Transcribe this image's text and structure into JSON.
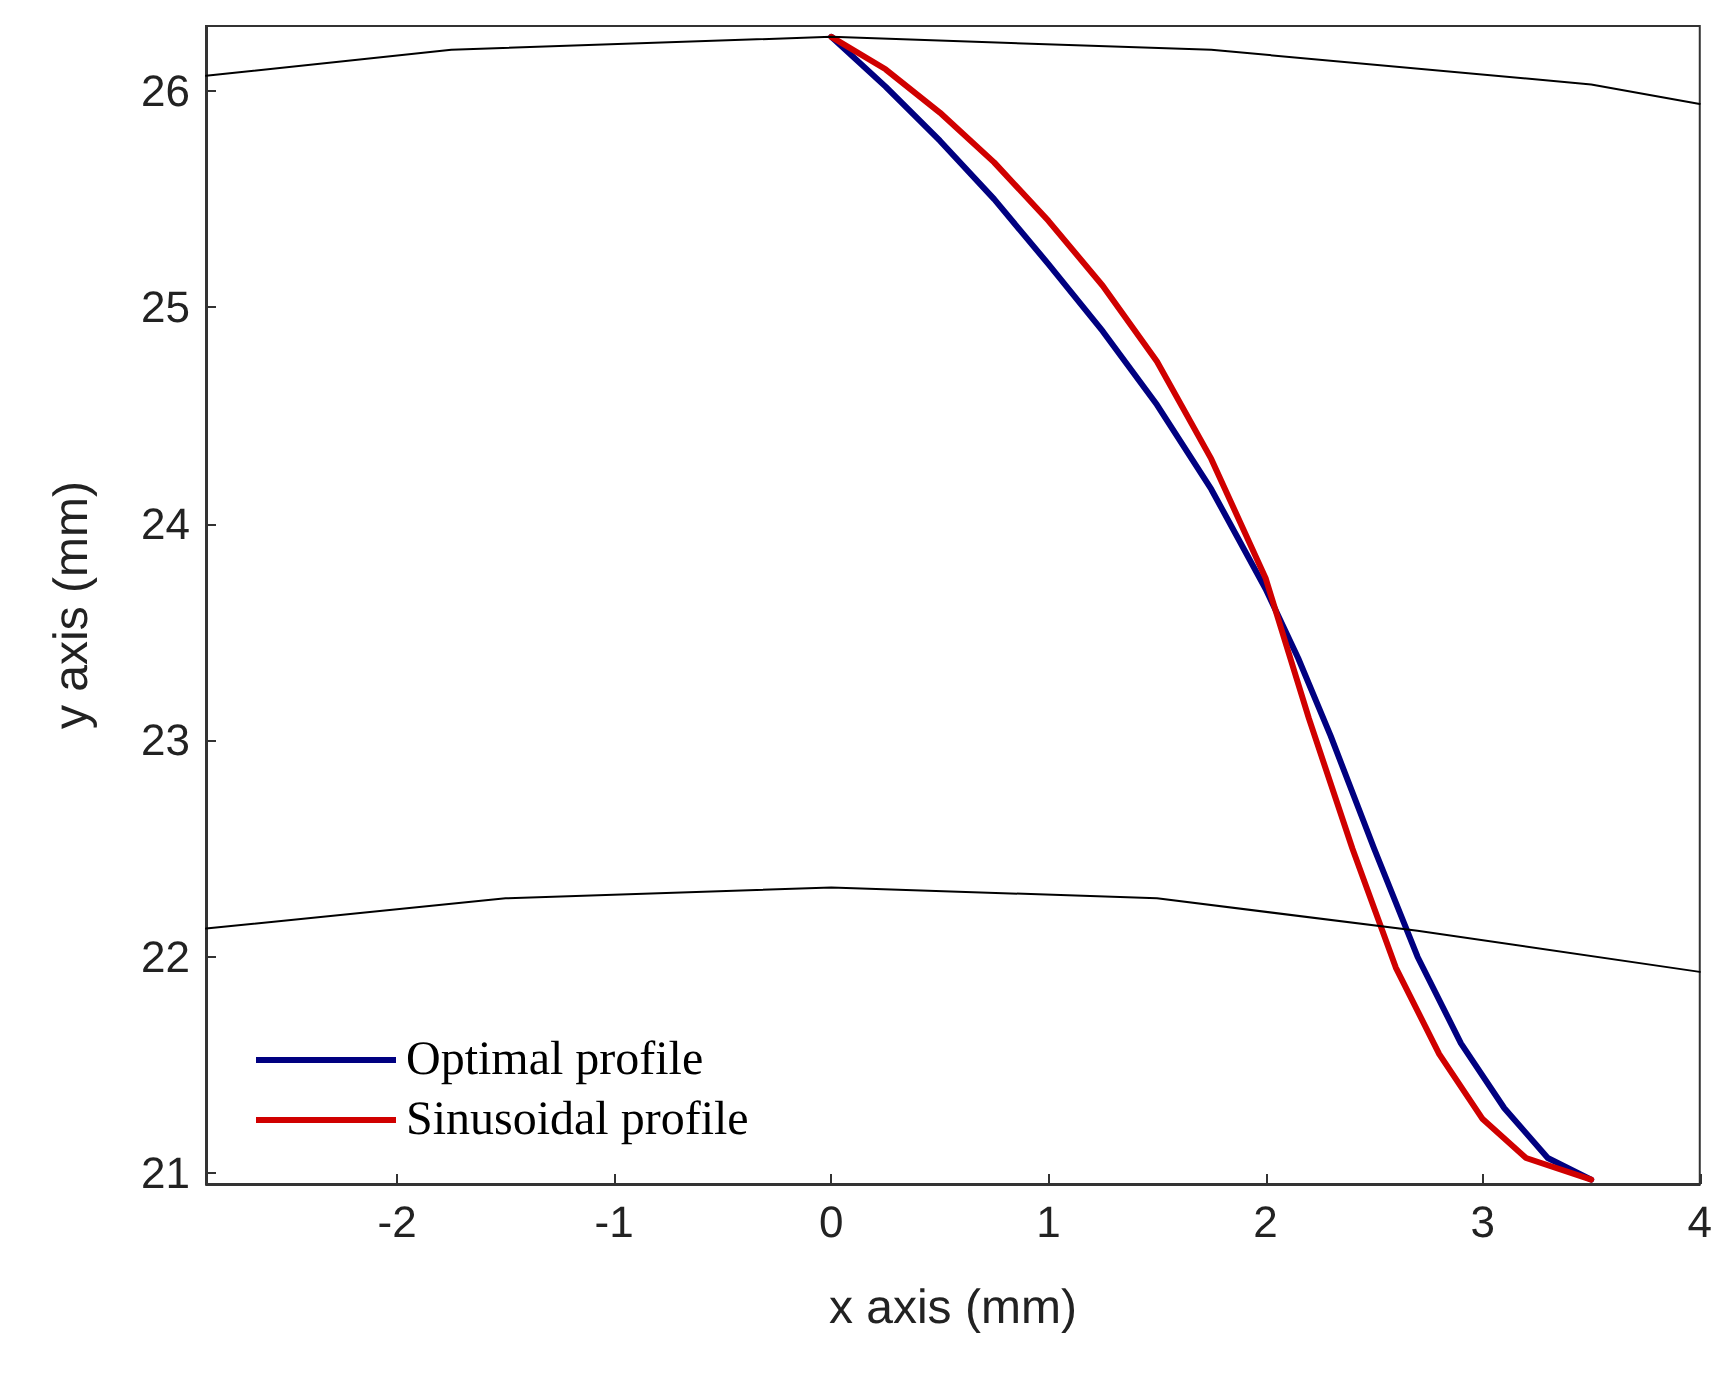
{
  "chart_data": {
    "type": "line",
    "xlabel": "x axis (mm)",
    "ylabel": "y axis (mm)",
    "xlim": [
      -2.88,
      4
    ],
    "ylim": [
      20.95,
      26.3
    ],
    "xticks": [
      -2,
      -1,
      0,
      1,
      2,
      3,
      4
    ],
    "yticks": [
      21,
      22,
      23,
      24,
      25,
      26
    ],
    "grid": false,
    "legend": "bottom left",
    "marker": "none",
    "line_style": "solid",
    "series": [
      {
        "name": "Optimal profile",
        "color": "#000080",
        "x": [
          0,
          0.25,
          0.5,
          0.75,
          1,
          1.25,
          1.5,
          1.75,
          2,
          2.15,
          2.3,
          2.5,
          2.7,
          2.9,
          3.1,
          3.3,
          3.5
        ],
        "values": [
          26.25,
          26.02,
          25.77,
          25.5,
          25.2,
          24.89,
          24.55,
          24.16,
          23.7,
          23.38,
          23.02,
          22.5,
          22.0,
          21.6,
          21.3,
          21.07,
          20.97
        ]
      },
      {
        "name": "Sinusoidal profile",
        "color": "#d00000",
        "x": [
          0,
          0.25,
          0.5,
          0.75,
          1,
          1.25,
          1.5,
          1.75,
          2,
          2.2,
          2.4,
          2.6,
          2.8,
          3.0,
          3.2,
          3.5
        ],
        "values": [
          26.25,
          26.1,
          25.9,
          25.67,
          25.4,
          25.1,
          24.75,
          24.3,
          23.75,
          23.1,
          22.5,
          21.95,
          21.55,
          21.25,
          21.07,
          20.97
        ]
      },
      {
        "color": "#000000",
        "x": [
          -2.88,
          -1.75,
          0,
          1.75,
          3.5,
          4
        ],
        "values": [
          26.07,
          26.19,
          26.25,
          26.19,
          26.03,
          25.94
        ]
      },
      {
        "color": "#000000",
        "x": [
          -2.88,
          -1.5,
          0,
          1.5,
          2.7,
          4
        ],
        "values": [
          22.13,
          22.27,
          22.32,
          22.27,
          22.12,
          21.93
        ]
      }
    ]
  }
}
